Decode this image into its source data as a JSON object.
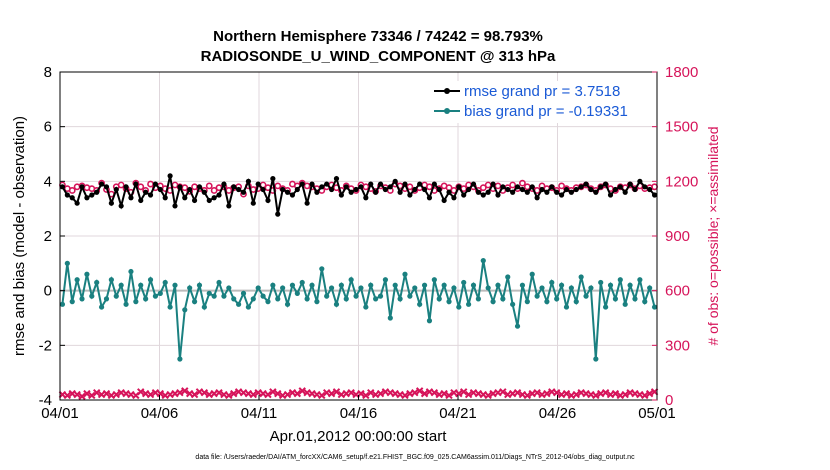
{
  "chart_data": {
    "type": "line",
    "title": "Northern Hemisphere 73346 / 74242 = 98.793%",
    "subtitle": "RADIOSONDE_U_WIND_COMPONENT @ 313 hPa",
    "xlabel": "Apr.01,2012 00:00:00 start",
    "ylabel_left": "rmse and bias (model - observation)",
    "ylabel_right": "# of obs: o=possible; ×=assimilated",
    "x_tick_labels": [
      "04/01",
      "04/06",
      "04/11",
      "04/16",
      "04/21",
      "04/26",
      "05/01"
    ],
    "y_left_ticks": [
      "-4",
      "-2",
      "0",
      "2",
      "4",
      "6",
      "8"
    ],
    "y_right_ticks": [
      "0",
      "300",
      "600",
      "900",
      "1200",
      "1500",
      "1800"
    ],
    "ylim_left": [
      -4,
      8
    ],
    "ylim_right": [
      0,
      1800
    ],
    "xlim_days": [
      0,
      30
    ],
    "grid": true,
    "colors": {
      "rmse": "#000000",
      "bias": "#1a8080",
      "obs": "#d6145a",
      "legend_text": "#1a5ad6",
      "zero_line": "#bbbbbb",
      "grid": "#e0d7dc"
    },
    "legend": {
      "placement": "top-right",
      "rmse": "rmse grand pr = 3.7518",
      "bias": "bias grand pr = -0.19331"
    },
    "footer": "data file: /Users/raeder/DAI/ATM_forcXX/CAM6_setup/f.e21.FHIST_BGC.f09_025.CAM6assim.011/Diags_NTrS_2012-04/obs_diag_output.nc",
    "series": [
      {
        "name": "rmse",
        "values": [
          3.8,
          3.5,
          3.4,
          3.2,
          3.8,
          3.4,
          3.5,
          3.6,
          3.9,
          3.8,
          3.2,
          3.7,
          3.1,
          3.8,
          3.4,
          3.9,
          3.3,
          3.6,
          3.5,
          3.9,
          3.7,
          3.4,
          4.2,
          3.1,
          3.8,
          3.4,
          3.7,
          3.3,
          3.8,
          3.6,
          3.3,
          3.4,
          3.5,
          3.9,
          3.1,
          3.8,
          3.7,
          3.6,
          4.0,
          3.2,
          3.9,
          3.7,
          3.3,
          4.1,
          2.8,
          3.7,
          3.6,
          3.5,
          3.7,
          3.9,
          3.2,
          3.9,
          3.6,
          3.8,
          3.9,
          3.7,
          4.1,
          3.5,
          3.8,
          3.6,
          3.7,
          3.8,
          3.4,
          3.9,
          3.6,
          3.9,
          3.7,
          3.8,
          4.0,
          3.6,
          3.9,
          3.5,
          3.7,
          3.9,
          3.7,
          3.4,
          3.9,
          3.7,
          3.3,
          3.6,
          3.4,
          3.8,
          3.5,
          3.7,
          3.9,
          3.6,
          3.5,
          3.6,
          3.9,
          3.5,
          3.8,
          3.7,
          3.6,
          3.8,
          3.7,
          3.6,
          3.8,
          3.4,
          3.7,
          3.6,
          3.8,
          3.6,
          3.5,
          3.7,
          3.6,
          3.7,
          3.8,
          3.9,
          3.7,
          3.6,
          3.8,
          3.9,
          3.5,
          3.7,
          3.8,
          3.6,
          3.9,
          3.7,
          4.0,
          3.8,
          3.7,
          3.5
        ]
      },
      {
        "name": "bias",
        "values": [
          -0.5,
          1.0,
          -0.4,
          0.4,
          -0.3,
          0.6,
          -0.2,
          0.3,
          -0.6,
          -0.3,
          0.4,
          -0.2,
          0.2,
          -0.5,
          0.7,
          -0.4,
          0.2,
          -0.3,
          0.4,
          -0.2,
          -0.1,
          0.3,
          -0.6,
          0.2,
          -2.5,
          -0.7,
          0.1,
          -0.4,
          0.2,
          -0.6,
          -0.1,
          -0.2,
          0.3,
          -0.2,
          0.1,
          -0.3,
          -0.5,
          -0.1,
          -0.6,
          -0.3,
          0.1,
          -0.2,
          -0.4,
          0.2,
          -0.3,
          0.1,
          -0.5,
          0.2,
          -0.1,
          0.3,
          -0.3,
          0.2,
          -0.4,
          0.8,
          -0.2,
          0.1,
          -0.5,
          0.2,
          -0.3,
          0.4,
          -0.2,
          0.1,
          -0.6,
          0.2,
          -0.3,
          -0.2,
          0.4,
          -1.0,
          0.2,
          -0.3,
          0.6,
          -0.2,
          0.1,
          -0.5,
          0.2,
          -1.1,
          0.4,
          -0.3,
          0.2,
          -0.4,
          0.1,
          -0.6,
          0.3,
          -0.5,
          0.2,
          -0.3,
          1.1,
          0.1,
          -0.4,
          0.2,
          -0.3,
          0.5,
          -0.5,
          -1.3,
          0.2,
          -0.4,
          0.6,
          -0.2,
          0.1,
          -0.4,
          0.3,
          -0.3,
          0.2,
          -0.6,
          0.1,
          -0.4,
          0.5,
          -0.2,
          0.1,
          -2.5,
          0.3,
          -0.6,
          0.2,
          -0.3,
          0.4,
          -0.5,
          0.2,
          -0.3,
          0.4,
          -0.4,
          0.1,
          -0.6
        ]
      },
      {
        "name": "obs_possible",
        "values": [
          1180,
          1160,
          1150,
          1170,
          1175,
          1165,
          1160,
          1150,
          1190,
          1155,
          1130,
          1170,
          1180,
          1160,
          1140,
          1190,
          1170,
          1150,
          1185,
          1165,
          1175,
          1160,
          1150,
          1180,
          1170,
          1165,
          1145,
          1170,
          1160,
          1150,
          1175,
          1150,
          1165,
          1170,
          1150,
          1165,
          1170,
          1130,
          1175,
          1155,
          1160,
          1180,
          1165,
          1150,
          1175,
          1160,
          1150,
          1185,
          1175,
          1190,
          1175,
          1170,
          1160,
          1150,
          1170,
          1180,
          1165,
          1150,
          1175,
          1160,
          1150,
          1180,
          1170,
          1160,
          1145,
          1175,
          1165,
          1150,
          1185,
          1175,
          1160,
          1170,
          1150,
          1165,
          1180,
          1170,
          1150,
          1160,
          1175,
          1165,
          1150,
          1170,
          1160,
          1180,
          1170,
          1150,
          1165,
          1180,
          1160,
          1175,
          1150,
          1165,
          1180,
          1160,
          1190,
          1170,
          1160,
          1150,
          1175,
          1160,
          1165,
          1150,
          1175,
          1160,
          1150,
          1165,
          1170,
          1180,
          1160,
          1150,
          1170,
          1180,
          1160,
          1150,
          1170,
          1165,
          1180,
          1160,
          1175,
          1160,
          1165,
          1170
        ]
      },
      {
        "name": "obs_assimilated",
        "values": [
          30,
          25,
          35,
          30,
          20,
          35,
          25,
          40,
          30,
          35,
          25,
          30,
          40,
          35,
          30,
          25,
          45,
          35,
          30,
          40,
          35,
          25,
          30,
          35,
          40,
          50,
          35,
          30,
          45,
          40,
          30,
          35,
          40,
          30,
          25,
          35,
          45,
          40,
          35,
          30,
          40,
          35,
          30,
          45,
          35,
          25,
          30,
          40,
          35,
          50,
          40,
          35,
          30,
          25,
          40,
          35,
          45,
          30,
          35,
          40,
          30,
          35,
          25,
          40,
          30,
          35,
          45,
          40,
          35,
          30,
          25,
          35,
          40,
          50,
          35,
          45,
          40,
          30,
          35,
          25,
          40,
          35,
          45,
          30,
          40,
          35,
          30,
          25,
          35,
          40,
          45,
          30,
          35,
          40,
          30,
          25,
          35,
          40,
          30,
          35,
          45,
          40,
          30,
          35,
          25,
          30,
          40,
          35,
          30,
          25,
          35,
          40,
          30,
          35,
          25,
          30,
          40,
          35,
          30,
          25,
          35,
          45
        ]
      }
    ]
  }
}
